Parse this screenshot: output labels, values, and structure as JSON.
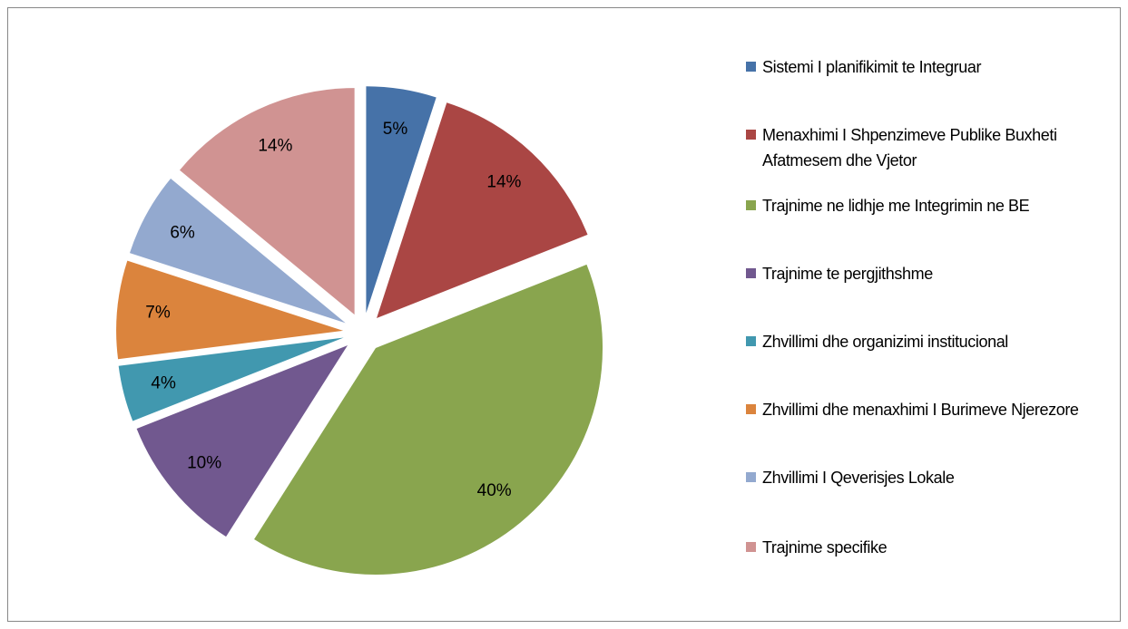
{
  "chart_data": {
    "type": "pie",
    "categories": [
      "Sistemi I planifikimit te Integruar",
      "Menaxhimi I Shpenzimeve Publike Buxheti Afatmesem dhe Vjetor",
      "Trajnime ne lidhje me Integrimin ne BE",
      "Trajnime te pergjithshme",
      "Zhvillimi dhe organizimi institucional",
      "Zhvillimi dhe menaxhimi I Burimeve Njerezore",
      "Zhvillimi I Qeverisjes Lokale",
      "Trajnime specifike"
    ],
    "values": [
      5,
      14,
      40,
      10,
      4,
      7,
      6,
      14
    ],
    "value_labels": [
      "5%",
      "14%",
      "40%",
      "10%",
      "4%",
      "7%",
      "6%",
      "14%"
    ],
    "colors": [
      "#4672a8",
      "#aa4644",
      "#89a54e",
      "#71588f",
      "#4198af",
      "#db843d",
      "#93a9cf",
      "#d09392"
    ],
    "legend": "right",
    "exploded": true
  }
}
